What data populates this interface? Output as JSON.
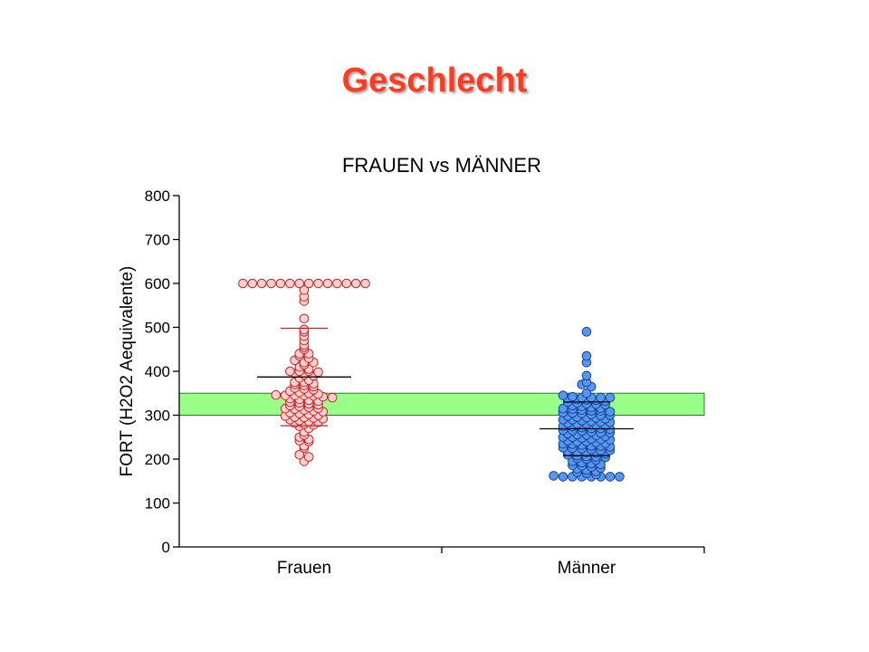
{
  "slide": {
    "title": "Geschlecht"
  },
  "chart_data": {
    "type": "scatter",
    "title": "FRAUEN vs MÄNNER",
    "xlabel": "",
    "ylabel": "FORT (H2O2 Aequivalente)",
    "ylim": [
      0,
      800
    ],
    "yticks": [
      0,
      100,
      200,
      300,
      400,
      500,
      600,
      700,
      800
    ],
    "categories": [
      "Frauen",
      "Männer"
    ],
    "reference_band": {
      "from": 300,
      "to": 350,
      "color": "#99ff88"
    },
    "series": [
      {
        "category": "Frauen",
        "marker_fill": "#ffd0d0",
        "marker_stroke": "#cc2222",
        "mean": 387,
        "mean_plus_sd": 498,
        "mean_minus_sd": 276,
        "values": [
          600,
          600,
          600,
          600,
          600,
          600,
          600,
          600,
          600,
          600,
          600,
          600,
          600,
          600,
          585,
          570,
          560,
          520,
          495,
          490,
          480,
          470,
          460,
          455,
          450,
          440,
          440,
          435,
          430,
          425,
          420,
          420,
          415,
          410,
          405,
          400,
          400,
          400,
          398,
          395,
          392,
          390,
          385,
          380,
          375,
          375,
          372,
          370,
          368,
          365,
          362,
          360,
          358,
          355,
          352,
          350,
          348,
          346,
          345,
          345,
          345,
          344,
          342,
          340,
          338,
          336,
          334,
          332,
          330,
          328,
          326,
          324,
          322,
          320,
          318,
          316,
          315,
          314,
          312,
          310,
          308,
          306,
          304,
          302,
          300,
          298,
          296,
          295,
          294,
          292,
          290,
          288,
          286,
          284,
          282,
          280,
          278,
          275,
          270,
          262,
          255,
          250,
          245,
          242,
          240,
          230,
          225,
          210,
          205,
          195
        ]
      },
      {
        "category": "Männer",
        "marker_fill": "#5599ee",
        "marker_stroke": "#1a3f99",
        "mean": 269,
        "mean_plus_sd": 330,
        "mean_minus_sd": 208,
        "values": [
          490,
          435,
          420,
          390,
          375,
          370,
          365,
          350,
          345,
          342,
          340,
          340,
          340,
          340,
          338,
          336,
          335,
          334,
          332,
          330,
          328,
          326,
          325,
          324,
          322,
          320,
          318,
          316,
          315,
          314,
          312,
          310,
          310,
          308,
          306,
          305,
          304,
          302,
          300,
          300,
          298,
          296,
          295,
          294,
          292,
          290,
          290,
          288,
          286,
          285,
          284,
          282,
          280,
          280,
          278,
          276,
          275,
          274,
          272,
          270,
          270,
          268,
          266,
          265,
          264,
          262,
          260,
          260,
          258,
          256,
          255,
          254,
          252,
          250,
          250,
          248,
          246,
          245,
          244,
          242,
          240,
          240,
          238,
          236,
          235,
          234,
          232,
          230,
          230,
          228,
          226,
          225,
          224,
          222,
          220,
          220,
          218,
          216,
          215,
          214,
          212,
          210,
          208,
          206,
          205,
          204,
          202,
          200,
          198,
          195,
          192,
          190,
          188,
          186,
          185,
          182,
          180,
          178,
          175,
          172,
          170,
          168,
          165,
          162,
          160,
          160,
          160,
          160,
          160,
          160,
          160
        ]
      }
    ]
  }
}
